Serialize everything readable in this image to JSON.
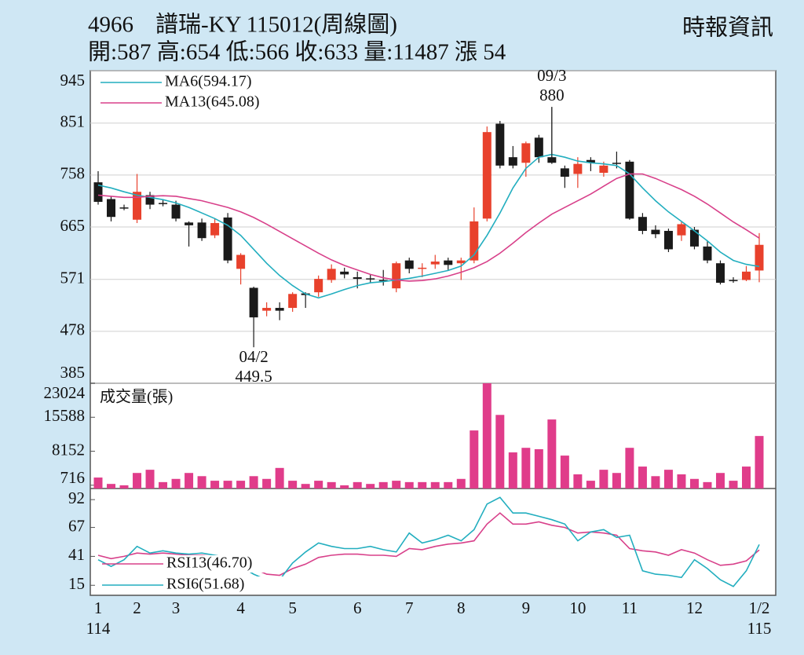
{
  "header": {
    "code": "4966",
    "name": "譜瑞-KY 115012(周線圖)",
    "source": "時報資訊",
    "stats": "開:587 高:654 低:566 收:633 量:11487 漲 54"
  },
  "chart_data": [
    {
      "type": "candlestick",
      "categories": [
        "1",
        null,
        null,
        "2",
        null,
        null,
        "3",
        null,
        null,
        null,
        null,
        "4",
        null,
        null,
        null,
        "5",
        null,
        null,
        null,
        null,
        "6",
        null,
        null,
        null,
        "7",
        null,
        null,
        null,
        "8",
        null,
        null,
        null,
        null,
        "9",
        null,
        null,
        null,
        "10",
        null,
        null,
        null,
        "11",
        null,
        null,
        null,
        null,
        "12",
        null,
        null,
        null,
        null,
        "1/2"
      ],
      "years": [
        "114",
        null,
        null,
        null,
        null,
        null,
        null,
        null,
        null,
        null,
        null,
        null,
        null,
        null,
        null,
        null,
        null,
        null,
        null,
        null,
        null,
        null,
        null,
        null,
        null,
        null,
        null,
        null,
        null,
        null,
        null,
        null,
        null,
        null,
        null,
        null,
        null,
        null,
        null,
        null,
        null,
        null,
        null,
        null,
        null,
        null,
        null,
        null,
        null,
        null,
        null,
        "115"
      ],
      "open": [
        745,
        715,
        700,
        678,
        722,
        708,
        705,
        673,
        673,
        650,
        682,
        590,
        556,
        515,
        520,
        520,
        546,
        548,
        570,
        585,
        575,
        573,
        570,
        555,
        605,
        590,
        598,
        605,
        600,
        605,
        680,
        850,
        790,
        780,
        825,
        790,
        770,
        760,
        785,
        762,
        780,
        782,
        683,
        660,
        658,
        650,
        660,
        630,
        600,
        570,
        570,
        587
      ],
      "high": [
        765,
        720,
        705,
        760,
        728,
        714,
        712,
        675,
        680,
        680,
        690,
        618,
        558,
        530,
        530,
        548,
        548,
        578,
        598,
        592,
        585,
        580,
        588,
        603,
        610,
        600,
        615,
        610,
        610,
        700,
        845,
        855,
        810,
        818,
        830,
        880,
        775,
        790,
        790,
        782,
        800,
        785,
        690,
        668,
        662,
        675,
        665,
        640,
        605,
        575,
        595,
        654
      ],
      "low": [
        705,
        675,
        695,
        672,
        697,
        702,
        675,
        630,
        640,
        645,
        600,
        562,
        449.5,
        505,
        498,
        513,
        520,
        540,
        565,
        573,
        555,
        565,
        560,
        548,
        582,
        575,
        590,
        588,
        570,
        600,
        675,
        770,
        770,
        755,
        780,
        778,
        735,
        735,
        765,
        755,
        770,
        678,
        652,
        645,
        620,
        640,
        625,
        600,
        562,
        565,
        568,
        566
      ],
      "close": [
        710,
        683,
        700,
        728,
        705,
        708,
        680,
        668,
        645,
        672,
        605,
        615,
        503,
        520,
        515,
        545,
        543,
        572,
        590,
        580,
        572,
        573,
        568,
        600,
        590,
        592,
        603,
        597,
        605,
        675,
        835,
        775,
        775,
        815,
        790,
        780,
        755,
        778,
        780,
        775,
        778,
        680,
        658,
        652,
        625,
        670,
        630,
        605,
        565,
        570,
        585,
        633
      ],
      "up_color": "#e8412c",
      "down_color": "#1a1a1a",
      "series": [
        {
          "name": "MA6(594.17)",
          "color": "#22aebf",
          "values": [
            740,
            735,
            728,
            722,
            718,
            714,
            708,
            700,
            690,
            680,
            668,
            650,
            625,
            600,
            578,
            560,
            545,
            538,
            545,
            553,
            560,
            565,
            567,
            570,
            573,
            577,
            582,
            587,
            595,
            615,
            650,
            690,
            735,
            770,
            790,
            795,
            790,
            783,
            780,
            778,
            775,
            760,
            735,
            712,
            692,
            675,
            658,
            640,
            620,
            605,
            598,
            594.17
          ]
        },
        {
          "name": "MA13(645.08)",
          "color": "#d8408a",
          "values": [
            722,
            720,
            718,
            718,
            720,
            721,
            720,
            716,
            712,
            706,
            700,
            692,
            682,
            670,
            657,
            644,
            631,
            618,
            606,
            596,
            588,
            580,
            574,
            570,
            568,
            569,
            572,
            577,
            584,
            592,
            603,
            618,
            636,
            655,
            672,
            688,
            700,
            712,
            724,
            738,
            752,
            760,
            760,
            752,
            742,
            732,
            720,
            706,
            690,
            674,
            660,
            645.08
          ]
        }
      ],
      "annotations": [
        {
          "date": "04/2",
          "value": 449.5
        },
        {
          "date": "09/3",
          "value": 880
        }
      ],
      "ylim": [
        385,
        945
      ],
      "yticks": [
        945,
        851,
        758,
        665,
        571,
        478,
        385
      ],
      "grid": true
    },
    {
      "type": "bar",
      "title": "成交量(張)",
      "color": "#e03c8a",
      "values": [
        2400,
        1000,
        700,
        3400,
        4100,
        1400,
        2100,
        3400,
        2700,
        1700,
        1700,
        1700,
        2700,
        2100,
        4500,
        1700,
        1000,
        1700,
        1400,
        700,
        1400,
        1000,
        1400,
        1700,
        1400,
        1400,
        1400,
        1400,
        2100,
        12700,
        23024,
        16100,
        7900,
        8900,
        8600,
        15100,
        7200,
        3100,
        1700,
        4100,
        3400,
        8900,
        4800,
        2700,
        4100,
        3100,
        2100,
        1400,
        3400,
        1700,
        4800,
        11487
      ],
      "ylim": [
        0,
        23024
      ],
      "yticks": [
        23024,
        15588,
        8152,
        716
      ]
    },
    {
      "type": "line",
      "series": [
        {
          "name": "RSI13(46.70)",
          "color": "#d8408a",
          "values": [
            42,
            39,
            41,
            44,
            43,
            44,
            43,
            42,
            42,
            41,
            40,
            36,
            30,
            25,
            24,
            30,
            34,
            40,
            42,
            43,
            43,
            42,
            42,
            41,
            48,
            47,
            50,
            52,
            53,
            55,
            70,
            80,
            70,
            70,
            72,
            69,
            67,
            62,
            63,
            62,
            60,
            48,
            46,
            45,
            42,
            47,
            44,
            38,
            33,
            34,
            37,
            46.7
          ]
        },
        {
          "name": "RSI6(51.68)",
          "color": "#22aebf",
          "values": [
            38,
            32,
            38,
            50,
            44,
            46,
            44,
            43,
            44,
            42,
            40,
            32,
            25,
            20,
            20,
            35,
            45,
            53,
            50,
            48,
            48,
            50,
            47,
            45,
            62,
            53,
            56,
            60,
            55,
            65,
            88,
            94,
            80,
            80,
            77,
            74,
            70,
            55,
            63,
            65,
            58,
            60,
            28,
            25,
            24,
            22,
            38,
            30,
            20,
            14,
            28,
            51.68
          ]
        }
      ],
      "ylim": [
        6,
        102
      ],
      "yticks": [
        92,
        67,
        41,
        15
      ]
    }
  ]
}
